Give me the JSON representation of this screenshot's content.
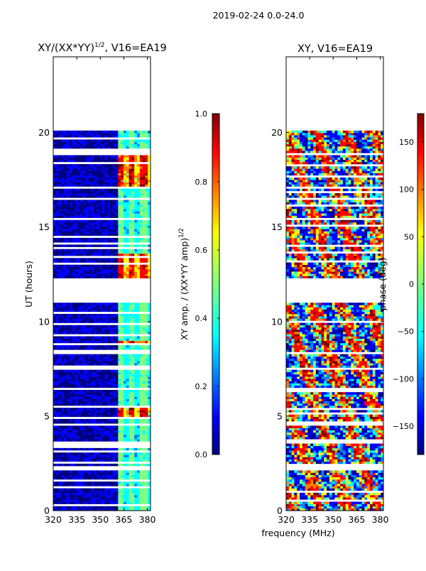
{
  "suptitle": "2019-02-24 0.0-24.0",
  "shared_xlabel": "frequency (MHz)",
  "colors": {
    "no_data": "#ffffff",
    "jet": [
      "#00007f",
      "#0000ff",
      "#007fff",
      "#00ffff",
      "#7fff7f",
      "#ffff00",
      "#ff7f00",
      "#ff0000",
      "#7f0000"
    ]
  },
  "chart_data": [
    {
      "type": "heatmap",
      "title_main": "XY/(XX*YY)",
      "title_sup": "1/2",
      "title_rest": ", V16=EA19",
      "xlabel": "",
      "ylabel": "UT (hours)",
      "xlim": [
        320,
        382
      ],
      "ylim": [
        0,
        24
      ],
      "xticks": [
        "320",
        "335",
        "350",
        "365",
        "380"
      ],
      "xtick_values": [
        320,
        335,
        350,
        365,
        380
      ],
      "yticks": [
        "0",
        "5",
        "10",
        "15",
        "20"
      ],
      "ytick_values": [
        0,
        5,
        10,
        15,
        20
      ],
      "data_end_hour": 20.1,
      "data_start_freq": 320,
      "colorbar": {
        "label_main": "XY amp. / (XX*YY amp)",
        "label_sup": "1/2",
        "range": [
          0.0,
          1.0
        ],
        "ticks": [
          "0.0",
          "0.2",
          "0.4",
          "0.6",
          "0.8",
          "1.0"
        ],
        "tick_values": [
          0.0,
          0.2,
          0.4,
          0.6,
          0.8,
          1.0
        ]
      },
      "description_bands": [
        {
          "freq_start": 320,
          "freq_end": 362,
          "level": 0.05
        },
        {
          "freq_start": 362,
          "freq_end": 382,
          "level": 0.45
        }
      ],
      "high_amplitude_hours": [
        [
          17.2,
          18.8
        ],
        [
          12.3,
          13.6
        ],
        [
          8.7,
          8.95
        ],
        [
          4.8,
          5.6
        ]
      ]
    },
    {
      "type": "heatmap",
      "title_main": "XY, V16=EA19",
      "title_sup": "",
      "title_rest": "",
      "xlabel": "",
      "ylabel": "",
      "xlim": [
        320,
        382
      ],
      "ylim": [
        0,
        24
      ],
      "xticks": [
        "320",
        "335",
        "350",
        "365",
        "380"
      ],
      "xtick_values": [
        320,
        335,
        350,
        365,
        380
      ],
      "yticks": [
        "0",
        "5",
        "10",
        "15",
        "20"
      ],
      "ytick_values": [
        0,
        5,
        10,
        15,
        20
      ],
      "data_end_hour": 20.1,
      "data_start_freq": 320,
      "colorbar": {
        "label_main": "phase (deg)",
        "label_sup": "",
        "range": [
          -180,
          180
        ],
        "ticks": [
          "−150",
          "−100",
          "−50",
          "0",
          "50",
          "100",
          "150"
        ],
        "tick_values": [
          -150,
          -100,
          -50,
          0,
          50,
          100,
          150
        ]
      }
    }
  ]
}
